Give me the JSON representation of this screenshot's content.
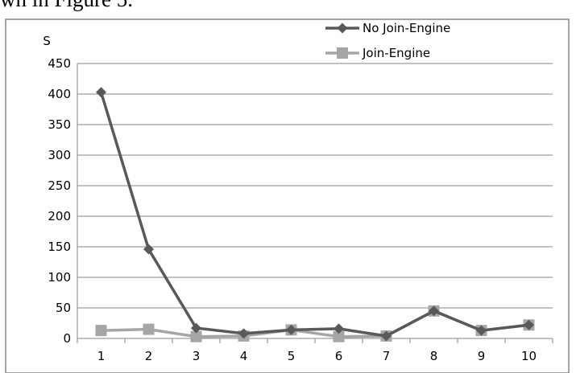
{
  "page": {
    "caption_fragment": "wn in Figure 5."
  },
  "chart_data": {
    "type": "line",
    "title": "",
    "xlabel": "",
    "ylabel": "S",
    "categories": [
      "1",
      "2",
      "3",
      "4",
      "5",
      "6",
      "7",
      "8",
      "9",
      "10"
    ],
    "ylim": [
      0,
      450
    ],
    "yticks": [
      "0",
      "50",
      "100",
      "150",
      "200",
      "250",
      "300",
      "350",
      "400",
      "450"
    ],
    "grid": true,
    "legend_position": "top-right",
    "series": [
      {
        "name": "No Join-Engine",
        "marker": "diamond",
        "color": "#595959",
        "values": [
          403,
          146,
          17,
          8,
          14,
          16,
          4,
          45,
          13,
          22
        ]
      },
      {
        "name": "Join-Engine",
        "marker": "square",
        "color": "#a6a6a6",
        "values": [
          13,
          15,
          3,
          4,
          14,
          3,
          4,
          45,
          13,
          22
        ]
      }
    ]
  }
}
